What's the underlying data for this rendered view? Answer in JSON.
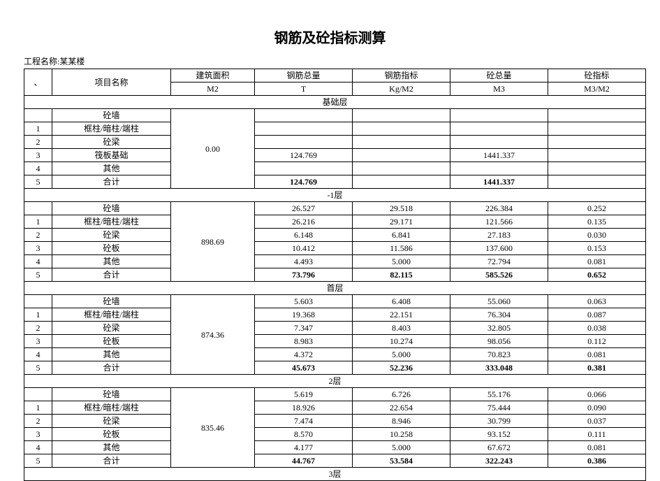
{
  "title": "钢筋及砼指标测算",
  "project_label": "工程名称:某某楼",
  "header": {
    "item_name": "项目名称",
    "area": {
      "top": "建筑面积",
      "unit": "M2"
    },
    "rebar": {
      "top": "钢筋总量",
      "unit": "T"
    },
    "rebar_idx": {
      "top": "钢筋指标",
      "unit": "Kg/M2"
    },
    "conc": {
      "top": "砼总量",
      "unit": "M3"
    },
    "conc_idx": {
      "top": "砼指标",
      "unit": "M3/M2"
    }
  },
  "row_names": {
    "wall": "砼墙",
    "col": "框柱/暗柱/端柱",
    "beam": "砼梁",
    "raft": "筏板基础",
    "slab": "砼板",
    "other": "其他",
    "sum": "合计"
  },
  "sections": [
    {
      "label": "基础层",
      "area": "0.00",
      "rows": [
        {
          "num": "",
          "name_key": "wall",
          "vals": [
            "",
            "",
            "",
            ""
          ]
        },
        {
          "num": "1",
          "name_key": "col",
          "vals": [
            "",
            "",
            "",
            ""
          ]
        },
        {
          "num": "2",
          "name_key": "beam",
          "vals": [
            "",
            "",
            "",
            ""
          ]
        },
        {
          "num": "3",
          "name_key": "raft",
          "vals": [
            "124.769",
            "",
            "1441.337",
            ""
          ]
        },
        {
          "num": "4",
          "name_key": "other",
          "vals": [
            "",
            "",
            "",
            ""
          ]
        },
        {
          "num": "5",
          "name_key": "sum",
          "vals": [
            "124.769",
            "",
            "1441.337",
            ""
          ],
          "bold": true
        }
      ]
    },
    {
      "label": "-1层",
      "area": "898.69",
      "rows": [
        {
          "num": "",
          "name_key": "wall",
          "vals": [
            "26.527",
            "29.518",
            "226.384",
            "0.252"
          ]
        },
        {
          "num": "1",
          "name_key": "col",
          "vals": [
            "26.216",
            "29.171",
            "121.566",
            "0.135"
          ]
        },
        {
          "num": "2",
          "name_key": "beam",
          "vals": [
            "6.148",
            "6.841",
            "27.183",
            "0.030"
          ]
        },
        {
          "num": "3",
          "name_key": "slab",
          "vals": [
            "10.412",
            "11.586",
            "137.600",
            "0.153"
          ]
        },
        {
          "num": "4",
          "name_key": "other",
          "vals": [
            "4.493",
            "5.000",
            "72.794",
            "0.081"
          ]
        },
        {
          "num": "5",
          "name_key": "sum",
          "vals": [
            "73.796",
            "82.115",
            "585.526",
            "0.652"
          ],
          "bold": true
        }
      ]
    },
    {
      "label": "首层",
      "area": "874.36",
      "rows": [
        {
          "num": "",
          "name_key": "wall",
          "vals": [
            "5.603",
            "6.408",
            "55.060",
            "0.063"
          ]
        },
        {
          "num": "1",
          "name_key": "col",
          "vals": [
            "19.368",
            "22.151",
            "76.304",
            "0.087"
          ]
        },
        {
          "num": "2",
          "name_key": "beam",
          "vals": [
            "7.347",
            "8.403",
            "32.805",
            "0.038"
          ]
        },
        {
          "num": "3",
          "name_key": "slab",
          "vals": [
            "8.983",
            "10.274",
            "98.056",
            "0.112"
          ]
        },
        {
          "num": "4",
          "name_key": "other",
          "vals": [
            "4.372",
            "5.000",
            "70.823",
            "0.081"
          ]
        },
        {
          "num": "5",
          "name_key": "sum",
          "vals": [
            "45.673",
            "52.236",
            "333.048",
            "0.381"
          ],
          "bold": true
        }
      ]
    },
    {
      "label": "2层",
      "area": "835.46",
      "rows": [
        {
          "num": "",
          "name_key": "wall",
          "vals": [
            "5.619",
            "6.726",
            "55.176",
            "0.066"
          ]
        },
        {
          "num": "1",
          "name_key": "col",
          "vals": [
            "18.926",
            "22.654",
            "75.444",
            "0.090"
          ]
        },
        {
          "num": "2",
          "name_key": "beam",
          "vals": [
            "7.474",
            "8.946",
            "30.799",
            "0.037"
          ]
        },
        {
          "num": "3",
          "name_key": "slab",
          "vals": [
            "8.570",
            "10.258",
            "93.152",
            "0.111"
          ]
        },
        {
          "num": "4",
          "name_key": "other",
          "vals": [
            "4.177",
            "5.000",
            "67.672",
            "0.081"
          ]
        },
        {
          "num": "5",
          "name_key": "sum",
          "vals": [
            "44.767",
            "53.584",
            "322.243",
            "0.386"
          ],
          "bold": true
        }
      ]
    }
  ],
  "trailing_section_label": "3层",
  "corner_mark": "、"
}
